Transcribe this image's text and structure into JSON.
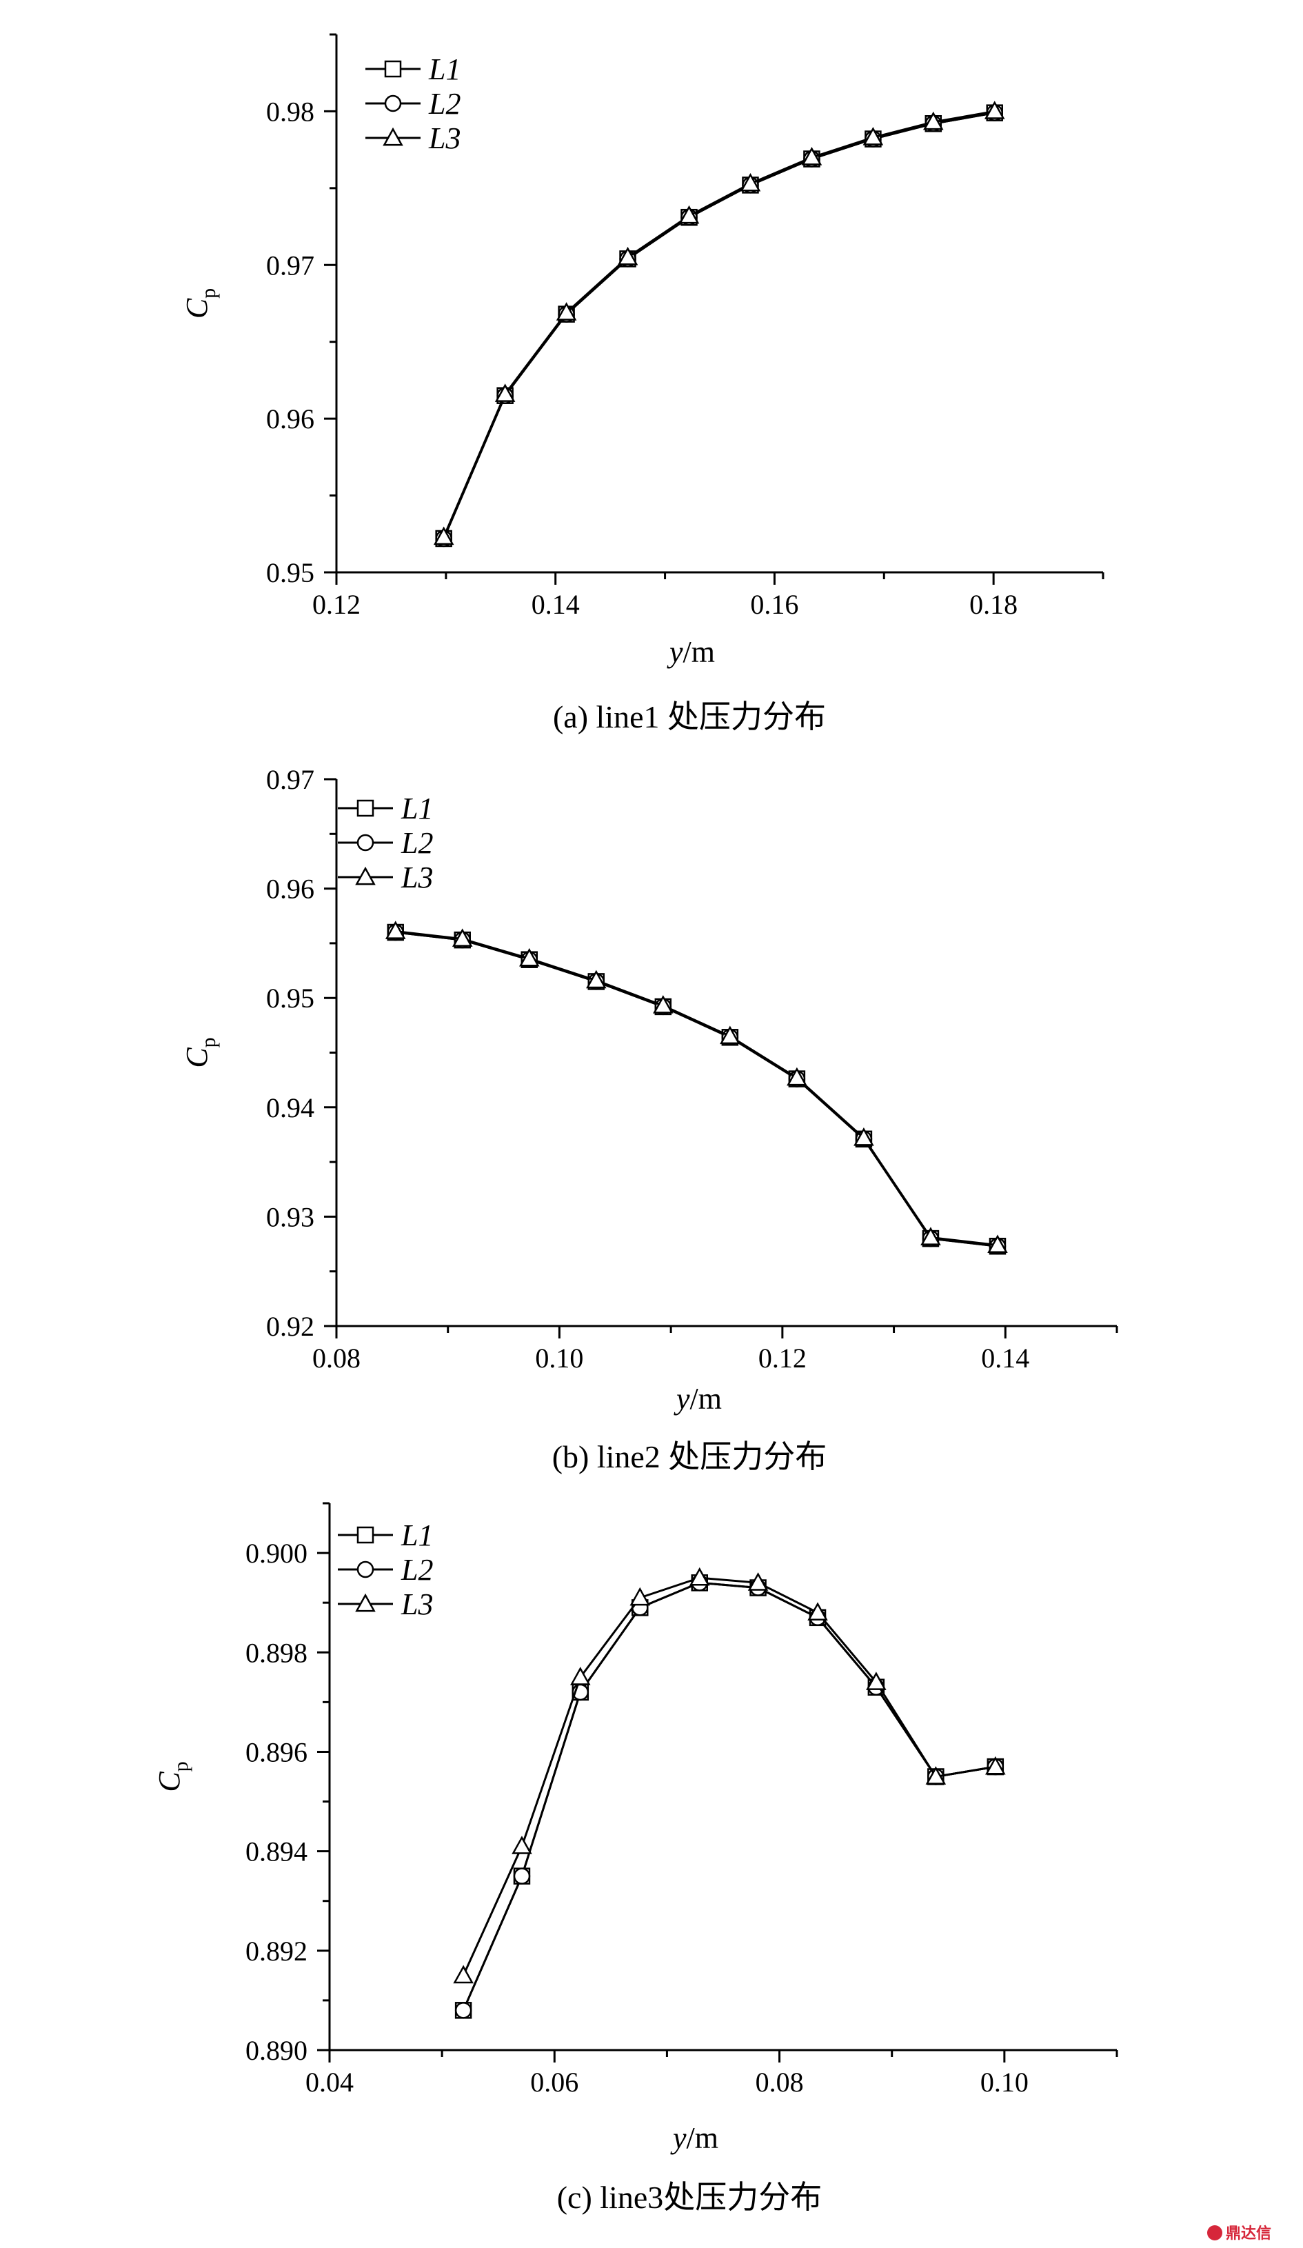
{
  "chart_data": [
    {
      "type": "line",
      "caption": "(a)  line1 处压力分布",
      "xlabel_var": "y",
      "xlabel_unit": "/m",
      "ylabel_main": "C",
      "ylabel_sub": "p",
      "xlim": [
        0.12,
        0.19
      ],
      "ylim": [
        0.95,
        0.985
      ],
      "xticks": [
        0.12,
        0.14,
        0.16,
        0.18
      ],
      "xtick_labels": [
        "0.12",
        "0.14",
        "0.16",
        "0.18"
      ],
      "yticks": [
        0.95,
        0.96,
        0.97,
        0.98
      ],
      "ytick_labels": [
        "0.95",
        "0.96",
        "0.97",
        "0.98"
      ],
      "legend_position": "top-left",
      "series": [
        {
          "name": "L1",
          "marker": "square",
          "x": [
            0.1298,
            0.1354,
            0.141,
            0.1466,
            0.1522,
            0.1578,
            0.1634,
            0.169,
            0.1745,
            0.1801
          ],
          "y": [
            0.9522,
            0.9615,
            0.9668,
            0.9704,
            0.9731,
            0.9752,
            0.9769,
            0.9782,
            0.9792,
            0.9799
          ]
        },
        {
          "name": "L2",
          "marker": "circle",
          "x": [
            0.1298,
            0.1354,
            0.141,
            0.1466,
            0.1522,
            0.1578,
            0.1634,
            0.169,
            0.1745,
            0.1801
          ],
          "y": [
            0.9522,
            0.9615,
            0.9668,
            0.9704,
            0.9731,
            0.9752,
            0.9769,
            0.9782,
            0.9792,
            0.9799
          ]
        },
        {
          "name": "L3",
          "marker": "triangle",
          "x": [
            0.1298,
            0.1354,
            0.141,
            0.1466,
            0.1522,
            0.1578,
            0.1634,
            0.169,
            0.1745,
            0.1801
          ],
          "y": [
            0.9523,
            0.9616,
            0.9669,
            0.9705,
            0.9732,
            0.9753,
            0.977,
            0.9783,
            0.9793,
            0.98
          ]
        }
      ]
    },
    {
      "type": "line",
      "caption": "(b)  line2 处压力分布",
      "xlabel_var": "y",
      "xlabel_unit": "/m",
      "ylabel_main": "C",
      "ylabel_sub": "p",
      "xlim": [
        0.08,
        0.15
      ],
      "ylim": [
        0.92,
        0.97
      ],
      "xticks": [
        0.08,
        0.1,
        0.12,
        0.14
      ],
      "xtick_labels": [
        "0.08",
        "0.10",
        "0.12",
        "0.14"
      ],
      "yticks": [
        0.92,
        0.93,
        0.94,
        0.95,
        0.96,
        0.97
      ],
      "ytick_labels": [
        "0.92",
        "0.93",
        "0.94",
        "0.95",
        "0.96",
        "0.97"
      ],
      "legend_position": "top-left",
      "series": [
        {
          "name": "L1",
          "marker": "square",
          "x": [
            0.0853,
            0.0913,
            0.0973,
            0.1033,
            0.1093,
            0.1153,
            0.1213,
            0.1273,
            0.1333,
            0.1393
          ],
          "y": [
            0.956,
            0.9553,
            0.9535,
            0.9515,
            0.9492,
            0.9464,
            0.9426,
            0.9371,
            0.928,
            0.9273
          ]
        },
        {
          "name": "L2",
          "marker": "circle",
          "x": [
            0.0853,
            0.0913,
            0.0973,
            0.1033,
            0.1093,
            0.1153,
            0.1213,
            0.1273,
            0.1333,
            0.1393
          ],
          "y": [
            0.956,
            0.9553,
            0.9535,
            0.9515,
            0.9492,
            0.9464,
            0.9426,
            0.9371,
            0.928,
            0.9273
          ]
        },
        {
          "name": "L3",
          "marker": "triangle",
          "x": [
            0.0853,
            0.0913,
            0.0973,
            0.1033,
            0.1093,
            0.1153,
            0.1213,
            0.1273,
            0.1333,
            0.1393
          ],
          "y": [
            0.9561,
            0.9554,
            0.9536,
            0.9516,
            0.9493,
            0.9465,
            0.9427,
            0.9372,
            0.9281,
            0.9274
          ]
        }
      ]
    },
    {
      "type": "line",
      "caption": "(c)  line3处压力分布",
      "xlabel_var": "y",
      "xlabel_unit": "/m",
      "ylabel_main": "C",
      "ylabel_sub": "p",
      "xlim": [
        0.04,
        0.11
      ],
      "ylim": [
        0.89,
        0.901
      ],
      "xticks": [
        0.04,
        0.06,
        0.08,
        0.1
      ],
      "xtick_labels": [
        "0.04",
        "0.06",
        "0.08",
        "0.10"
      ],
      "yticks": [
        0.89,
        0.892,
        0.894,
        0.896,
        0.898,
        0.9
      ],
      "ytick_labels": [
        "0.890",
        "0.892",
        "0.894",
        "0.896",
        "0.898",
        "0.900"
      ],
      "legend_position": "top-left",
      "series": [
        {
          "name": "L1",
          "marker": "square",
          "x": [
            0.0519,
            0.0571,
            0.0623,
            0.0676,
            0.0729,
            0.0781,
            0.0834,
            0.0886,
            0.0939,
            0.0992
          ],
          "y": [
            0.8908,
            0.8935,
            0.8972,
            0.8989,
            0.8994,
            0.8993,
            0.8987,
            0.8973,
            0.8955,
            0.8957
          ]
        },
        {
          "name": "L2",
          "marker": "circle",
          "x": [
            0.0519,
            0.0571,
            0.0623,
            0.0676,
            0.0729,
            0.0781,
            0.0834,
            0.0886,
            0.0939,
            0.0992
          ],
          "y": [
            0.8908,
            0.8935,
            0.8972,
            0.8989,
            0.8994,
            0.8993,
            0.8987,
            0.8973,
            0.8955,
            0.8957
          ]
        },
        {
          "name": "L3",
          "marker": "triangle",
          "x": [
            0.0519,
            0.0571,
            0.0623,
            0.0676,
            0.0729,
            0.0781,
            0.0834,
            0.0886,
            0.0939,
            0.0992
          ],
          "y": [
            0.8915,
            0.8941,
            0.8975,
            0.8991,
            0.8995,
            0.8994,
            0.8988,
            0.8974,
            0.8955,
            0.8957
          ]
        }
      ]
    }
  ],
  "watermark": {
    "text": "鼎达信"
  }
}
